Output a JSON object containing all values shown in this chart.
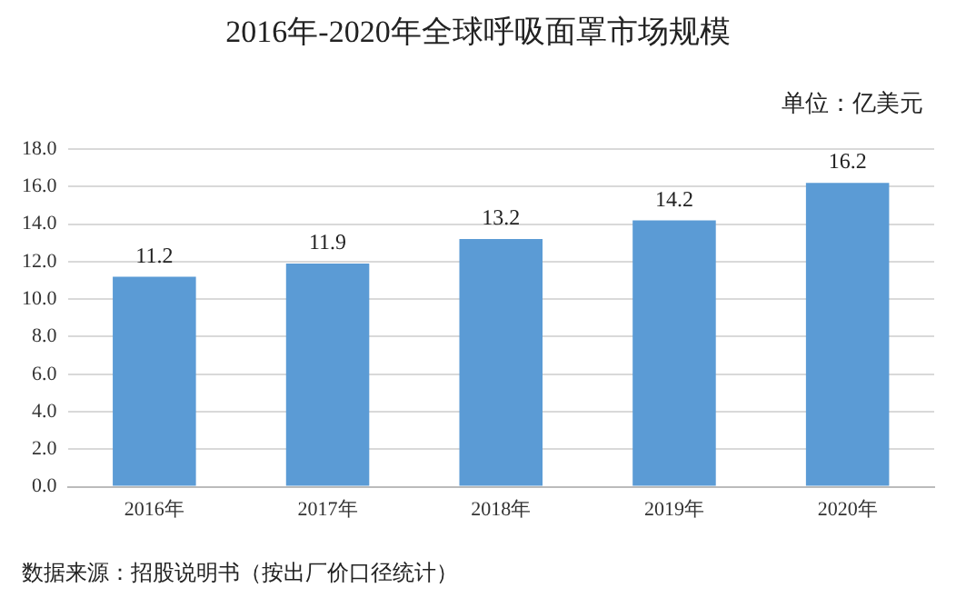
{
  "chart_data": {
    "type": "bar",
    "title": "2016年-2020年全球呼吸面罩市场规模",
    "ylabel": "单位：亿美元",
    "categories": [
      "2016年",
      "2017年",
      "2018年",
      "2019年",
      "2020年"
    ],
    "values": [
      11.2,
      11.9,
      13.2,
      14.2,
      16.2
    ],
    "color": "#5b9bd5",
    "ylim": [
      0,
      18
    ],
    "yticks": [
      {
        "value": 0,
        "label": "0.0"
      },
      {
        "value": 2,
        "label": "2.0"
      },
      {
        "value": 4,
        "label": "4.0"
      },
      {
        "value": 6,
        "label": "6.0"
      },
      {
        "value": 8,
        "label": "8.0"
      },
      {
        "value": 10,
        "label": "10.0"
      },
      {
        "value": 12,
        "label": "12.0"
      },
      {
        "value": 14,
        "label": "14.0"
      },
      {
        "value": 16,
        "label": "16.0"
      },
      {
        "value": 18,
        "label": "18.0"
      }
    ],
    "grid": "y",
    "legend": false,
    "data_labels": true,
    "annotations": [
      "数据来源：招股说明书（按出厂价口径统计）"
    ]
  }
}
